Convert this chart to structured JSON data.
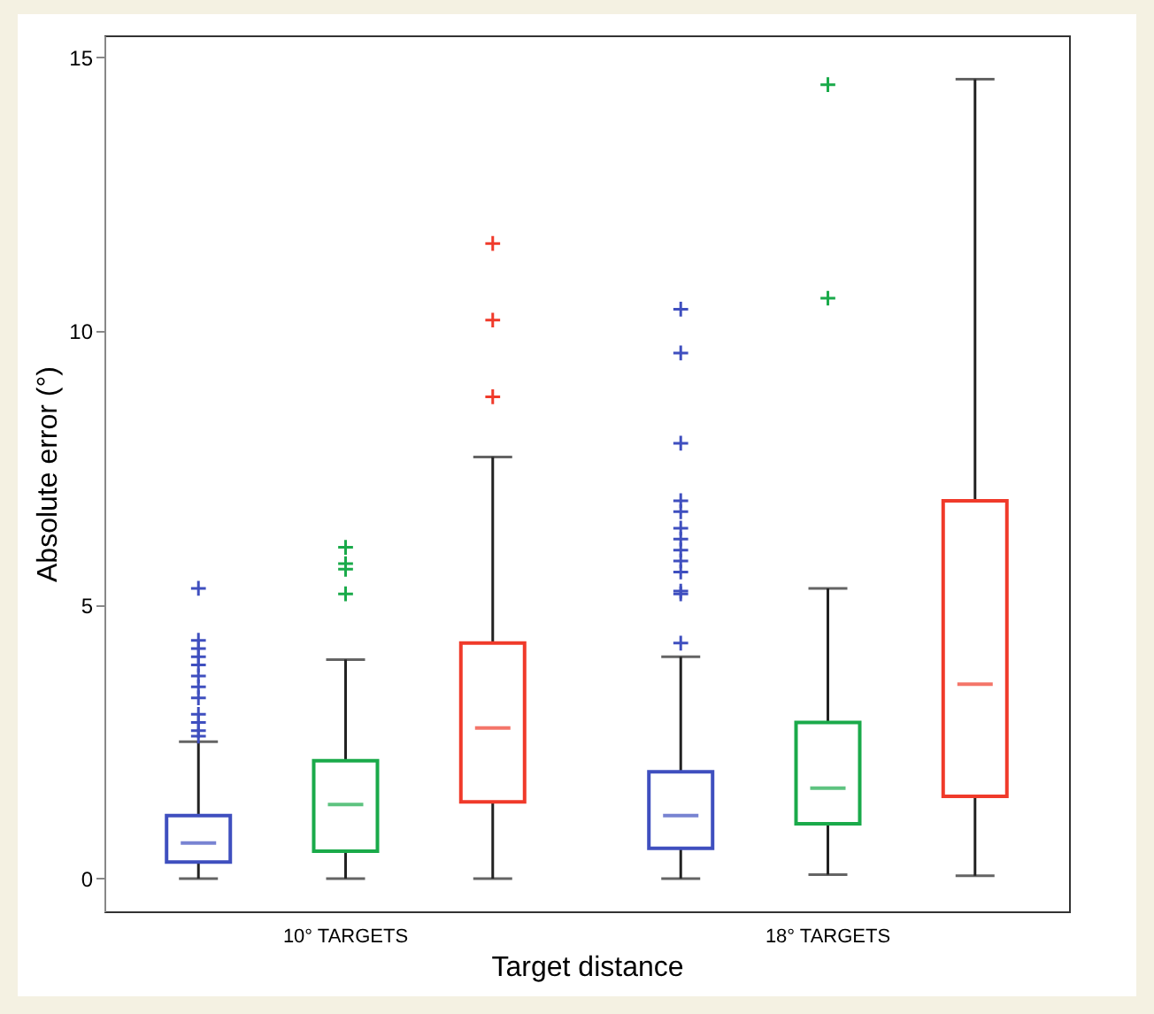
{
  "chart_data": {
    "type": "box",
    "xlabel": "Target distance",
    "ylabel": "Absolute error (°)",
    "categories": [
      "10° TARGETS",
      "18° TARGETS"
    ],
    "ylim": [
      -0.6,
      15.4
    ],
    "yticks": [
      0,
      5,
      10,
      15
    ],
    "grid": false,
    "legend": false,
    "series": [
      {
        "color": "#3f4fbf",
        "boxes": [
          {
            "low": 0,
            "q1": 0.3,
            "median": 0.65,
            "q3": 1.15,
            "high": 2.5,
            "outliers": [
              2.6,
              2.7,
              2.85,
              3.0,
              3.3,
              3.5,
              3.7,
              3.9,
              4.05,
              4.2,
              4.35,
              5.3
            ]
          },
          {
            "low": 0,
            "q1": 0.55,
            "median": 1.15,
            "q3": 1.95,
            "high": 4.05,
            "outliers": [
              4.3,
              5.2,
              5.25,
              5.6,
              5.8,
              6.0,
              6.2,
              6.4,
              6.7,
              6.9,
              7.95,
              9.6,
              10.4
            ]
          }
        ]
      },
      {
        "color": "#1aaa4a",
        "boxes": [
          {
            "low": 0,
            "q1": 0.5,
            "median": 1.35,
            "q3": 2.15,
            "high": 4.0,
            "outliers": [
              5.2,
              5.65,
              5.75,
              6.05
            ]
          },
          {
            "low": 0.07,
            "q1": 1.0,
            "median": 1.65,
            "q3": 2.85,
            "high": 5.3,
            "outliers": [
              10.6,
              14.5
            ]
          }
        ]
      },
      {
        "color": "#f03a2a",
        "boxes": [
          {
            "low": 0,
            "q1": 1.4,
            "median": 2.75,
            "q3": 4.3,
            "high": 7.7,
            "outliers": [
              8.8,
              10.2,
              11.6
            ]
          },
          {
            "low": 0.05,
            "q1": 1.5,
            "median": 3.55,
            "q3": 6.9,
            "high": 14.6
          }
        ]
      }
    ]
  }
}
